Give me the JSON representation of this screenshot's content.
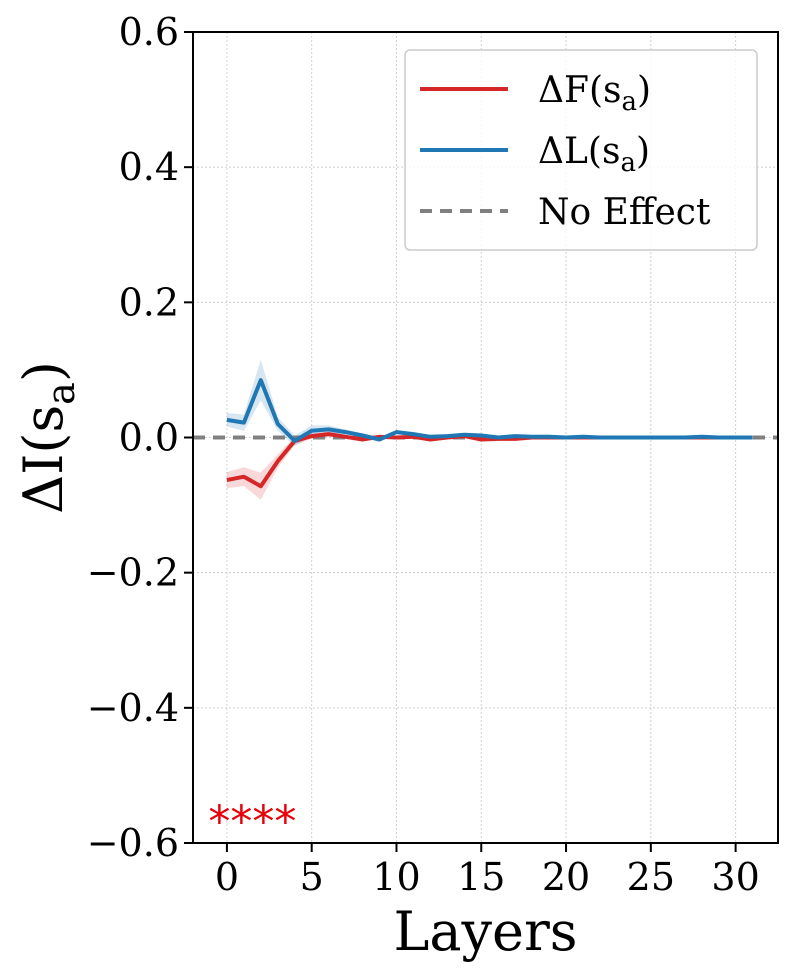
{
  "chart_data": {
    "type": "line",
    "xlabel": "Layers",
    "ylabel": "ΔI(s_a)",
    "ylabel_base": "ΔI(s",
    "ylabel_sub": "a",
    "ylabel_close": ")",
    "xlim": [
      -2,
      32.5
    ],
    "ylim": [
      -0.6,
      0.6
    ],
    "xticks": [
      0,
      5,
      10,
      15,
      20,
      25,
      30
    ],
    "yticks": [
      -0.6,
      -0.4,
      -0.2,
      0.0,
      0.2,
      0.4,
      0.6
    ],
    "ytick_labels": [
      "−0.6",
      "−0.4",
      "−0.2",
      "0.0",
      "0.2",
      "0.4",
      "0.6"
    ],
    "xtick_labels": [
      "0",
      "5",
      "10",
      "15",
      "20",
      "25",
      "30"
    ],
    "grid": true,
    "legend_position": "top-right",
    "x": [
      0,
      1,
      2,
      3,
      4,
      5,
      6,
      7,
      8,
      9,
      10,
      11,
      12,
      13,
      14,
      15,
      16,
      17,
      18,
      19,
      20,
      21,
      22,
      23,
      24,
      25,
      26,
      27,
      28,
      29,
      30,
      31
    ],
    "series": [
      {
        "name": "ΔF(s_a)",
        "legend_label": "ΔF(s",
        "legend_sub": "a",
        "color": "#d62728",
        "values": [
          -0.063,
          -0.058,
          -0.072,
          -0.035,
          -0.005,
          0.002,
          0.005,
          0.001,
          -0.003,
          0.001,
          0.0,
          0.001,
          -0.003,
          0.0,
          0.002,
          -0.003,
          -0.002,
          -0.002,
          0.0,
          0.0,
          0.0,
          0.0,
          0.0,
          0.0,
          0.0,
          0.0,
          0.0,
          0.0,
          0.0,
          0.0,
          0.0,
          0.0
        ],
        "band": [
          0.012,
          0.014,
          0.02,
          0.01,
          0.006,
          0.004,
          0.004,
          0.003,
          0.003,
          0.002,
          0.002,
          0.002,
          0.002,
          0.002,
          0.002,
          0.002,
          0.002,
          0.001,
          0.001,
          0.001,
          0.001,
          0.001,
          0.001,
          0.001,
          0.001,
          0.001,
          0.001,
          0.001,
          0.001,
          0.001,
          0.001,
          0.001
        ]
      },
      {
        "name": "ΔL(s_a)",
        "legend_label": "ΔL(s",
        "legend_sub": "a",
        "color": "#1f77b4",
        "values": [
          0.026,
          0.022,
          0.085,
          0.02,
          -0.005,
          0.01,
          0.012,
          0.008,
          0.003,
          -0.003,
          0.008,
          0.005,
          0.001,
          0.002,
          0.004,
          0.003,
          0.0,
          0.002,
          0.001,
          0.001,
          0.0,
          0.001,
          0.0,
          0.0,
          0.0,
          0.0,
          0.0,
          0.0,
          0.001,
          0.0,
          0.0,
          0.0
        ],
        "band": [
          0.01,
          0.012,
          0.03,
          0.01,
          0.008,
          0.008,
          0.006,
          0.004,
          0.003,
          0.003,
          0.003,
          0.002,
          0.002,
          0.002,
          0.002,
          0.002,
          0.002,
          0.001,
          0.001,
          0.001,
          0.001,
          0.001,
          0.001,
          0.001,
          0.001,
          0.001,
          0.001,
          0.001,
          0.001,
          0.001,
          0.001,
          0.001
        ]
      }
    ],
    "reference_line": {
      "name": "No Effect",
      "y": 0.0,
      "color": "#808080",
      "style": "dashed"
    },
    "annotations": [
      {
        "text": "****",
        "x": 1.5,
        "y": -0.558,
        "color": "#e8000b"
      }
    ]
  }
}
